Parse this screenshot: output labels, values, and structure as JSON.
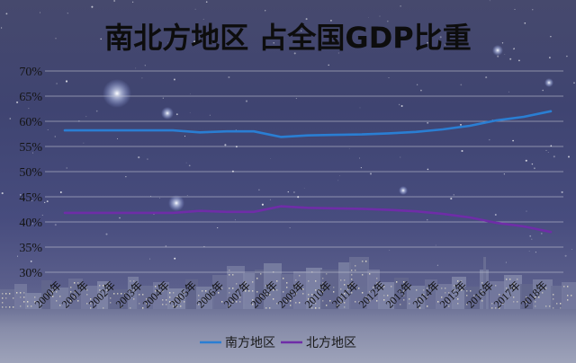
{
  "chart_data": {
    "type": "line",
    "title": "南北方地区 占全国GDP比重",
    "categories": [
      "2000年",
      "2001年",
      "2002年",
      "2003年",
      "2004年",
      "2005年",
      "2006年",
      "2007年",
      "2008年",
      "2009年",
      "2010年",
      "2011年",
      "2012年",
      "2013年",
      "2014年",
      "2015年",
      "2016年",
      "2017年",
      "2018年"
    ],
    "series": [
      {
        "name": "南方地区",
        "color": "#2a7ed3",
        "values": [
          58.2,
          58.2,
          58.2,
          58.2,
          58.2,
          57.8,
          58.0,
          58.0,
          56.9,
          57.2,
          57.3,
          57.4,
          57.6,
          57.9,
          58.4,
          59.1,
          60.2,
          60.9,
          62.0
        ]
      },
      {
        "name": "北方地区",
        "color": "#6f2da8",
        "values": [
          41.8,
          41.8,
          41.8,
          41.8,
          41.8,
          42.2,
          42.0,
          42.0,
          43.1,
          42.8,
          42.7,
          42.6,
          42.4,
          42.1,
          41.6,
          40.9,
          39.8,
          39.1,
          38.0
        ]
      }
    ],
    "yticks": [
      70,
      65,
      60,
      55,
      50,
      45,
      40,
      35,
      30
    ],
    "ytick_labels": [
      "70%",
      "65%",
      "60%",
      "55%",
      "50%",
      "45%",
      "40%",
      "35%",
      "30%"
    ],
    "ylim": [
      30,
      70
    ],
    "grid": true,
    "legend_position": "bottom"
  }
}
